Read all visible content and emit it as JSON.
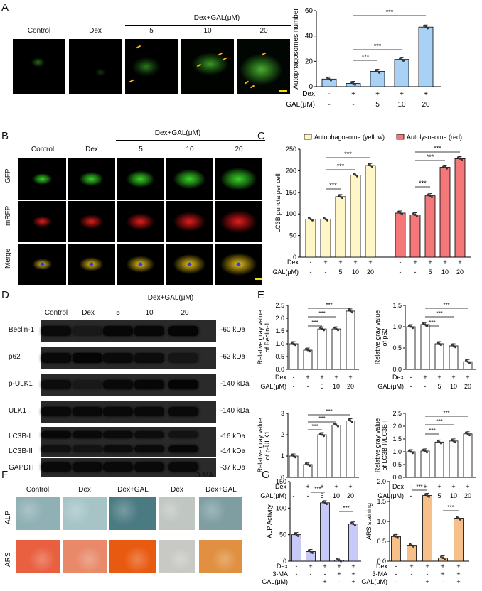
{
  "panels": [
    "A",
    "B",
    "C",
    "D",
    "E",
    "F",
    "G"
  ],
  "a": {
    "groups": [
      "Control",
      "Dex",
      "5",
      "10",
      "20"
    ],
    "header": "Dex+GAL(μM)",
    "chart_data": {
      "type": "bar",
      "ylabel": "Autophagosomes number",
      "ylim": [
        0,
        60
      ],
      "yticks": [
        0,
        20,
        40,
        60
      ],
      "values": [
        6,
        2.5,
        12,
        21.5,
        47
      ],
      "dex_row": [
        "-",
        "+",
        "+",
        "+",
        "+"
      ],
      "gal_row": [
        "-",
        "-",
        "5",
        "10",
        "20"
      ],
      "row_labels": [
        "Dex",
        "GAL(μM)"
      ],
      "sig": "***",
      "color": "#a9d1f5"
    }
  },
  "b": {
    "groups": [
      "Control",
      "Dex",
      "5",
      "10",
      "20"
    ],
    "header": "Dex+GAL(μM)",
    "rows": [
      "GFP",
      "mRFP",
      "Merge"
    ]
  },
  "c": {
    "chart_data": {
      "type": "bar",
      "ylabel": "LC3B puncta per cell",
      "ylim": [
        0,
        250
      ],
      "yticks": [
        0,
        50,
        100,
        150,
        200,
        250
      ],
      "series": [
        {
          "name": "Autophagosome (yellow)",
          "values": [
            88,
            88,
            140,
            190,
            212
          ],
          "color": "#fff6c8"
        },
        {
          "name": "Autolysosome (red)",
          "values": [
            102,
            98,
            142,
            208,
            228
          ],
          "color": "#f4787a"
        }
      ],
      "dex_row": [
        "-",
        "+",
        "+",
        "+",
        "+",
        "-",
        "+",
        "+",
        "+",
        "+"
      ],
      "gal_row": [
        "-",
        "-",
        "5",
        "10",
        "20",
        "-",
        "-",
        "5",
        "10",
        "20"
      ],
      "row_labels": [
        "Dex",
        "GAL(μM)"
      ],
      "sig": "***"
    }
  },
  "d": {
    "groups": [
      "Control",
      "Dex",
      "5",
      "10",
      "20"
    ],
    "header": "Dex+GAL(μM)",
    "proteins": [
      "Beclin-1",
      "p62",
      "p-ULK1",
      "ULK1",
      "LC3B-I",
      "LC3B-II",
      "GAPDH"
    ],
    "sizes": [
      "-60 kDa",
      "-62 kDa",
      "-140 kDa",
      "-140 kDa",
      "-16 kDa",
      "-14 kDa",
      "-37 kDa"
    ]
  },
  "e": {
    "row_labels": [
      "Dex",
      "GAL(μM)"
    ],
    "dex_row": [
      "-",
      "+",
      "+",
      "+",
      "+"
    ],
    "gal_row": [
      "-",
      "-",
      "5",
      "10",
      "20"
    ],
    "sig": "***",
    "chart_data": [
      {
        "type": "bar",
        "ylabel_1": "Relative gray value",
        "ylabel_2": "of  Beclin-1",
        "ylim": [
          0,
          2.5
        ],
        "yticks": [
          0.0,
          0.5,
          1.0,
          1.5,
          2.0,
          2.5
        ],
        "values": [
          1.0,
          0.75,
          1.58,
          1.58,
          2.28
        ]
      },
      {
        "type": "bar",
        "ylabel_1": "Relative gray value",
        "ylabel_2": "of  p62",
        "ylim": [
          0,
          1.5
        ],
        "yticks": [
          0.0,
          0.5,
          1.0,
          1.5
        ],
        "values": [
          1.0,
          1.05,
          0.6,
          0.55,
          0.18
        ]
      },
      {
        "type": "bar",
        "ylabel_1": "Relative gray value",
        "ylabel_2": "of  p-ULK1",
        "ylim": [
          0,
          3
        ],
        "yticks": [
          0,
          1,
          2,
          3
        ],
        "values": [
          1.0,
          0.6,
          2.0,
          2.45,
          2.65
        ]
      },
      {
        "type": "bar",
        "ylabel_1": "Relative gray value",
        "ylabel_2": "of LC3B-II/LC3B-I",
        "ylim": [
          0,
          2.5
        ],
        "yticks": [
          0.0,
          0.5,
          1.0,
          1.5,
          2.0,
          2.5
        ],
        "values": [
          1.0,
          1.03,
          1.38,
          1.42,
          1.7
        ]
      }
    ]
  },
  "f": {
    "groups": [
      "Control",
      "Dex",
      "Dex+GAL",
      "Dex",
      "Dex+GAL"
    ],
    "header": "3-MA",
    "rows": [
      "ALP",
      "ARS"
    ]
  },
  "g": {
    "row_labels": [
      "Dex",
      "3-MA",
      "GAL(μM)"
    ],
    "dex_row": [
      "-",
      "+",
      "+",
      "+",
      "+"
    ],
    "ma_row": [
      "-",
      "-",
      "-",
      "+",
      "+"
    ],
    "gal_row": [
      "-",
      "-",
      "+",
      "-",
      "+"
    ],
    "sig": "***",
    "chart_data": [
      {
        "type": "bar",
        "ylabel": "ALP Activity",
        "ylim": [
          0,
          150
        ],
        "yticks": [
          0,
          50,
          100,
          150
        ],
        "values": [
          50,
          18,
          110,
          2,
          70
        ],
        "color": "#c7c9f6"
      },
      {
        "type": "bar",
        "ylabel": "ARS staining",
        "ylim": [
          0,
          2.0
        ],
        "yticks": [
          0.0,
          0.5,
          1.0,
          1.5,
          2.0
        ],
        "values": [
          0.62,
          0.4,
          1.65,
          0.08,
          1.08
        ],
        "color": "#f7c08a"
      }
    ]
  }
}
